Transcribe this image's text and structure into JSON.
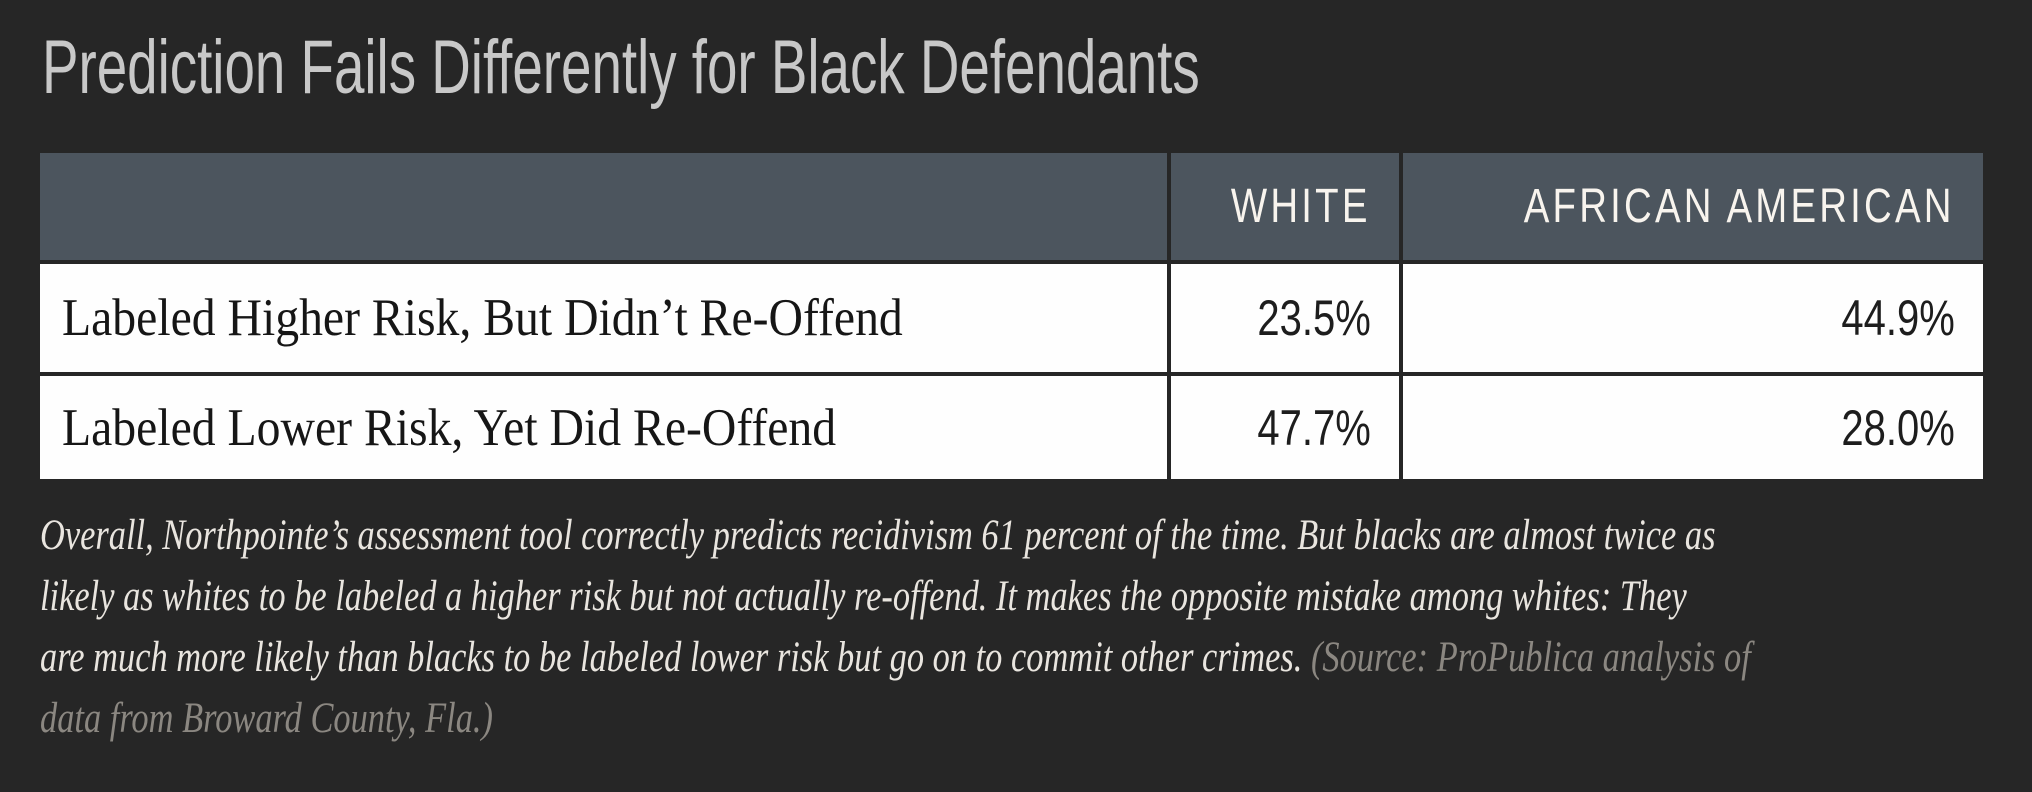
{
  "title": {
    "text": "Prediction Fails Differently for Black Defendants"
  },
  "table": {
    "columns": [
      "",
      "WHITE",
      "AFRICAN AMERICAN"
    ],
    "rows": [
      {
        "label": "Labeled Higher Risk, But Didn’t Re-Offend",
        "white": "23.5%",
        "african_american": "44.9%"
      },
      {
        "label": "Labeled Lower Risk, Yet Did Re-Offend",
        "white": "47.7%",
        "african_american": "28.0%"
      }
    ]
  },
  "caption": {
    "lines": [
      {
        "main": "Overall, Northpointe’s assessment tool correctly predicts recidivism 61 percent of the time. But blacks are almost twice as",
        "source": ""
      },
      {
        "main": "likely as whites to be labeled a higher risk but not actually re-offend. It makes the opposite mistake among whites: They",
        "source": ""
      },
      {
        "main": "are much more likely than blacks to be labeled lower risk but go on to commit other crimes. ",
        "source": "(Source: ProPublica analysis of"
      },
      {
        "main": "",
        "source": "data from Broward County, Fla.)"
      }
    ]
  },
  "colors": {
    "background": "#262626",
    "header_bg": "#4c555e",
    "header_text": "#f8f4ee",
    "cell_bg": "#fefefe",
    "title_text": "#c8c8c8",
    "caption_text": "#e9e5df",
    "source_text": "#8b8781"
  },
  "chart_data": {
    "type": "table",
    "title": "Prediction Fails Differently for Black Defendants",
    "columns": [
      "WHITE",
      "AFRICAN AMERICAN"
    ],
    "rows": [
      {
        "label": "Labeled Higher Risk, But Didn’t Re-Offend",
        "values": [
          23.5,
          44.9
        ]
      },
      {
        "label": "Labeled Lower Risk, Yet Did Re-Offend",
        "values": [
          47.7,
          28.0
        ]
      }
    ],
    "unit": "percent",
    "note": "Overall, Northpointe’s assessment tool correctly predicts recidivism 61 percent of the time. But blacks are almost twice as likely as whites to be labeled a higher risk but not actually re-offend. It makes the opposite mistake among whites: They are much more likely than blacks to be labeled lower risk but go on to commit other crimes.",
    "source": "(Source: ProPublica analysis of data from Broward County, Fla.)"
  }
}
